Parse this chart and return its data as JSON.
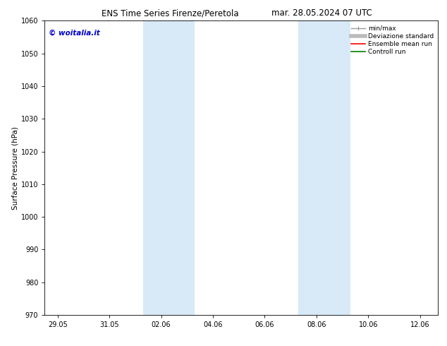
{
  "title_left": "ENS Time Series Firenze/Peretola",
  "title_right": "mar. 28.05.2024 07 UTC",
  "ylabel": "Surface Pressure (hPa)",
  "ylim": [
    970,
    1060
  ],
  "yticks": [
    970,
    980,
    990,
    1000,
    1010,
    1020,
    1030,
    1040,
    1050,
    1060
  ],
  "xtick_labels": [
    "29.05",
    "31.05",
    "02.06",
    "04.06",
    "06.06",
    "08.06",
    "10.06",
    "12.06"
  ],
  "xtick_positions": [
    0,
    2,
    4,
    6,
    8,
    10,
    12,
    14
  ],
  "xlim": [
    -0.5,
    14.7
  ],
  "shaded_bands": [
    {
      "x_start": 3.3,
      "x_end": 5.3
    },
    {
      "x_start": 9.3,
      "x_end": 11.3
    }
  ],
  "shaded_color": "#d8eaf8",
  "background_color": "#ffffff",
  "watermark_text": "© woitalia.it",
  "watermark_color": "#0000cc",
  "title_fontsize": 8.5,
  "tick_fontsize": 7,
  "ylabel_fontsize": 7.5,
  "legend_fontsize": 6.5,
  "watermark_fontsize": 7.5
}
